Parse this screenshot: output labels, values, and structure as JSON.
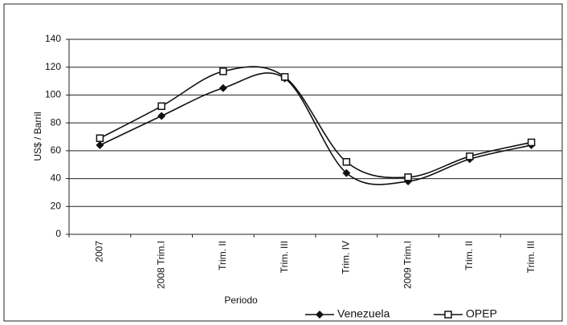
{
  "chart_data": {
    "type": "line",
    "categories": [
      "2007",
      "2008 Trim.I",
      "Trim. II",
      "Trim. III",
      "Trim. IV",
      "2009 Trim.I",
      "Trim. II",
      "Trim. III"
    ],
    "series": [
      {
        "name": "Venezuela",
        "color": "#111111",
        "marker": "diamond",
        "values": [
          64,
          85,
          105,
          112,
          44,
          38,
          54,
          64
        ]
      },
      {
        "name": "OPEP",
        "color": "#111111",
        "marker": "square",
        "values": [
          69,
          92,
          117,
          113,
          52,
          41,
          56,
          66
        ]
      }
    ],
    "y_label": "US$ / Barril",
    "x_label": "Periodo",
    "ylim": [
      0,
      140
    ],
    "yticks": [
      0,
      20,
      40,
      60,
      80,
      100,
      120,
      140
    ],
    "grid": true,
    "smooth": true,
    "legend": "bottom"
  }
}
